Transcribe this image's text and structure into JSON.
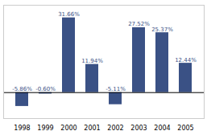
{
  "chart_data": {
    "type": "bar",
    "categories": [
      "1998",
      "1999",
      "2000",
      "2001",
      "2002",
      "2003",
      "2004",
      "2005"
    ],
    "values": [
      -5.86,
      -0.6,
      31.66,
      11.94,
      -5.11,
      27.52,
      25.37,
      12.44
    ],
    "value_labels": [
      "-5.86%",
      "-0.60%",
      "31.66%",
      "11.94%",
      "-5.11%",
      "27.52%",
      "25.37%",
      "12.44%"
    ],
    "color": "#3A5185",
    "ylim": [
      -11,
      37
    ],
    "data_labels": true,
    "tick_labels": "x"
  }
}
